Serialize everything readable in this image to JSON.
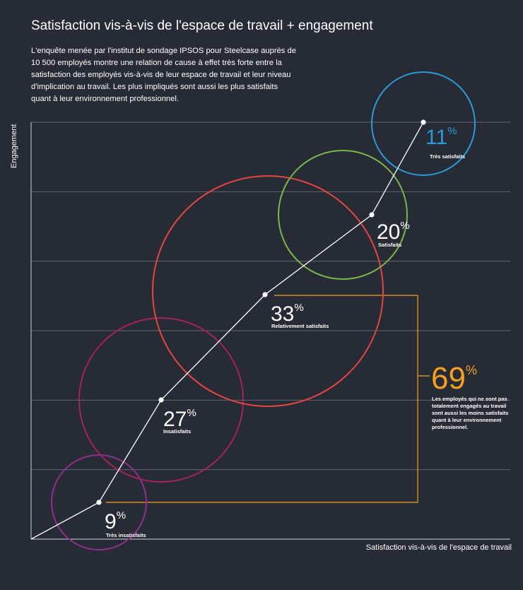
{
  "title": "Satisfaction vis-à-vis de l'espace de travail + engagement",
  "intro": "L'enquête menée par l'institut de sondage IPSOS pour Steelcase auprès de 10 500 employés montre une relation de cause à effet très forte entre la satisfaction des employés vis-à-vis de leur espace de travail et leur niveau d'implication au travail. Les plus impliqués sont aussi les plus satisfaits quant à leur environnement professionnel.",
  "chart_data": {
    "type": "bubble",
    "xlabel": "Satisfaction vis-à-vis de l'espace de travail",
    "ylabel": "Engagement",
    "grid": true,
    "points": [
      {
        "label": "Très insatisfaits",
        "value": 9,
        "unit": "%",
        "color": "#8e2f8e"
      },
      {
        "label": "Insatisfaits",
        "value": 27,
        "unit": "%",
        "color": "#a3235a"
      },
      {
        "label": "Relativement satisfaits",
        "value": 33,
        "unit": "%",
        "color": "#e2463c"
      },
      {
        "label": "Satisfaits",
        "value": 20,
        "unit": "%",
        "color": "#7ab648"
      },
      {
        "label": "Très satisfaits",
        "value": 11,
        "unit": "%",
        "color": "#2a9ad8"
      }
    ],
    "summary": {
      "value": 69,
      "unit": "%",
      "color": "#f5a020",
      "text": "Les employés qui ne sont pas totalement engagés au travail sont aussi les moins satisfaits quant à leur environnement professionnel."
    }
  }
}
